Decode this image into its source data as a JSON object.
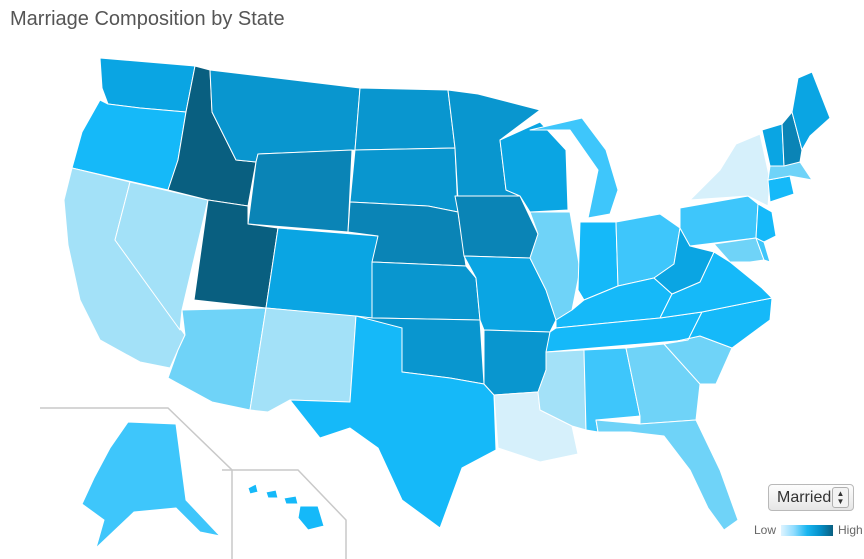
{
  "title": "Marriage Composition by State",
  "selector": {
    "value": "Married"
  },
  "legend": {
    "low": "Low",
    "high": "High"
  },
  "colors": {
    "c1": "#d6f0fb",
    "c2": "#a3e1f8",
    "c3": "#6fd3f8",
    "c4": "#3ec6fb",
    "c5": "#15b9f9",
    "c6": "#0aa5e3",
    "c7": "#0996cf",
    "c8": "#0a84b6",
    "c9": "#0a6e96",
    "c10": "#095f80"
  },
  "states": {
    "WA": "c6",
    "OR": "c5",
    "CA": "c2",
    "NV": "c2",
    "ID": "c10",
    "MT": "c7",
    "WY": "c8",
    "UT": "c10",
    "AZ": "c3",
    "CO": "c6",
    "NM": "c2",
    "ND": "c7",
    "SD": "c7",
    "NE": "c8",
    "KS": "c7",
    "OK": "c7",
    "TX": "c5",
    "MN": "c7",
    "IA": "c8",
    "MO": "c6",
    "AR": "c7",
    "LA": "c1",
    "WI": "c6",
    "IL": "c3",
    "MI": "c4",
    "IN": "c5",
    "OH": "c4",
    "KY": "c5",
    "TN": "c5",
    "MS": "c2",
    "AL": "c4",
    "GA": "c3",
    "FL": "c3",
    "SC": "c3",
    "NC": "c5",
    "VA": "c5",
    "WV": "c6",
    "PA": "c4",
    "NY": "c1",
    "VT": "c6",
    "NH": "c8",
    "ME": "c6",
    "MA": "c3",
    "CT": "c5",
    "NJ": "c5",
    "MD": "c3",
    "DE": "c4",
    "AK": "c4",
    "HI": "c5"
  }
}
